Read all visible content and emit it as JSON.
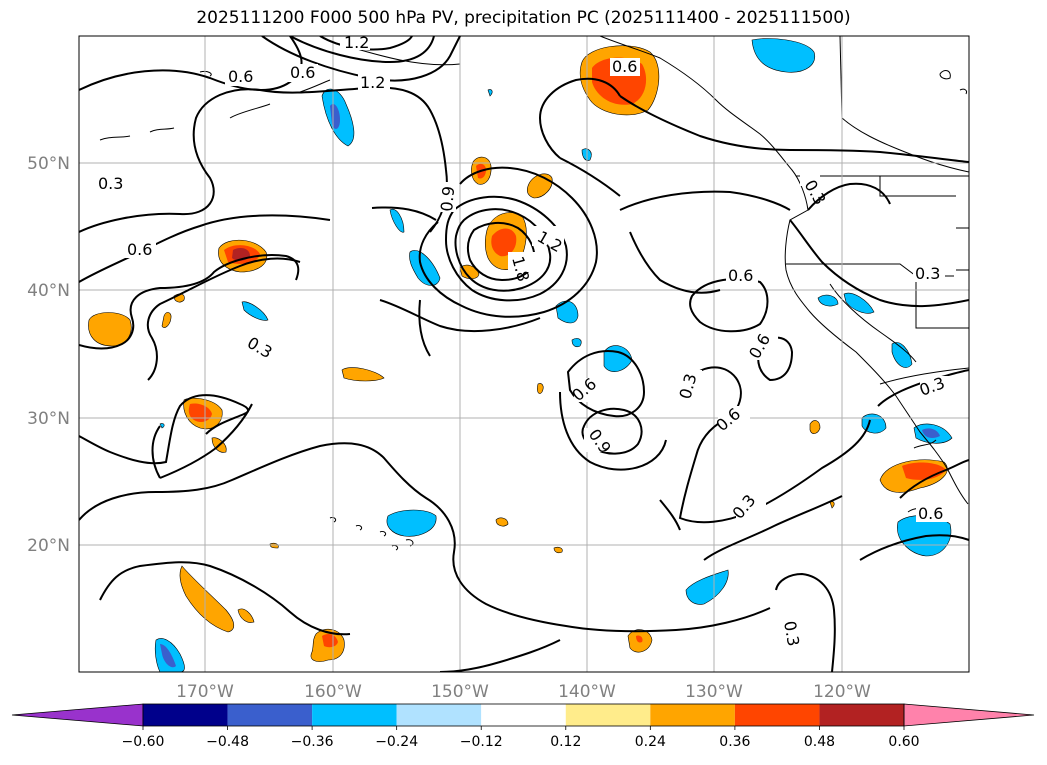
{
  "title": "2025111200 F000 500 hPa PV, precipitation PC (2025111400 - 2025111500)",
  "map": {
    "lon_labels": [
      "170°W",
      "160°W",
      "150°W",
      "140°W",
      "130°W",
      "120°W"
    ],
    "lat_labels": [
      "50°N",
      "40°N",
      "30°N",
      "20°N"
    ],
    "contour_labels": [
      "0.6",
      "0.6",
      "1.2",
      "1.2",
      "0.6",
      "0.3",
      "0.6",
      "0.9",
      "1.2",
      "1.8",
      "0.6",
      "0.3",
      "0.3",
      "0.6",
      "0.6",
      "0.9",
      "0.3",
      "0.6",
      "0.3",
      "0.3",
      "0.6",
      "0.3",
      "0.3"
    ]
  },
  "colorbar": {
    "levels": [
      "−0.60",
      "−0.48",
      "−0.36",
      "−0.24",
      "−0.12",
      "0.12",
      "0.24",
      "0.36",
      "0.48",
      "0.60"
    ],
    "colors": [
      "#9932cc",
      "#00008b",
      "#3a5fcd",
      "#00bfff",
      "#b0e2ff",
      "#ffffff",
      "#ffec8b",
      "#ffa500",
      "#ff4500",
      "#b22222",
      "#ff82ab"
    ]
  }
}
